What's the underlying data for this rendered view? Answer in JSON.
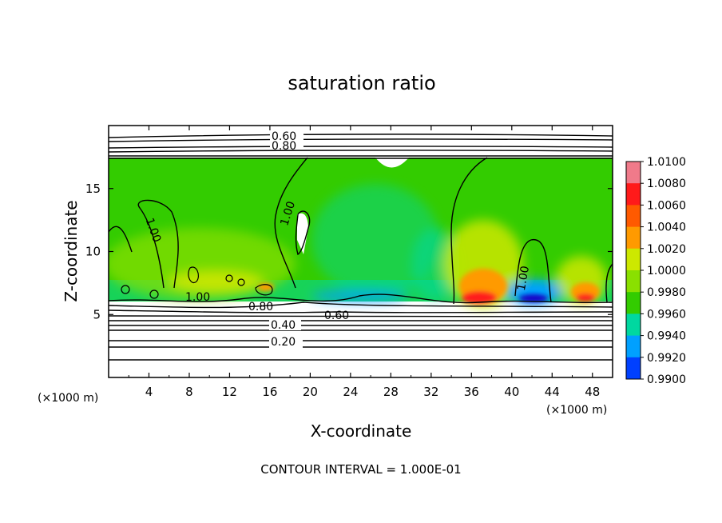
{
  "chart_data": {
    "type": "heatmap",
    "title": "saturation ratio",
    "xlabel": "X-coordinate",
    "ylabel": "Z-coordinate",
    "x_unit": "(×1000 m)",
    "y_unit": "(×1000 m)",
    "xlim": [
      0,
      50
    ],
    "ylim": [
      0,
      20
    ],
    "x_ticks": [
      4,
      8,
      12,
      16,
      20,
      24,
      28,
      32,
      36,
      40,
      44,
      48
    ],
    "y_ticks": [
      5,
      10,
      15
    ],
    "footer": "CONTOUR INTERVAL = 1.000E-01",
    "colorbar": {
      "ticks": [
        "1.0100",
        "1.0080",
        "1.0060",
        "1.0040",
        "1.0020",
        "1.0000",
        "0.9980",
        "0.9960",
        "0.9940",
        "0.9920",
        "0.9900"
      ],
      "range": [
        0.99,
        1.01
      ],
      "colors": [
        "#f07a8a",
        "#ff1a1a",
        "#ff5a00",
        "#ff9a00",
        "#cde800",
        "#8ae000",
        "#33cc00",
        "#00d8a0",
        "#00a0ff",
        "#0040ff",
        "#1400c8",
        "#5a00a0"
      ]
    },
    "contour_labels": [
      "0.60",
      "0.80",
      "1.00",
      "1.00",
      "1.00",
      "1.00",
      "0.80",
      "0.60",
      "0.40",
      "0.20"
    ],
    "features": [
      {
        "kind": "field-top",
        "z": 17.3
      },
      {
        "kind": "field-bottom",
        "z": 6.0
      },
      {
        "kind": "high-saturation-dome",
        "x": 37.5,
        "peak": 1.008
      },
      {
        "kind": "high-saturation-dome",
        "x": 47.0,
        "peak": 1.008
      },
      {
        "kind": "low-saturation-pool",
        "x": 42.5,
        "min": 0.991
      }
    ]
  }
}
